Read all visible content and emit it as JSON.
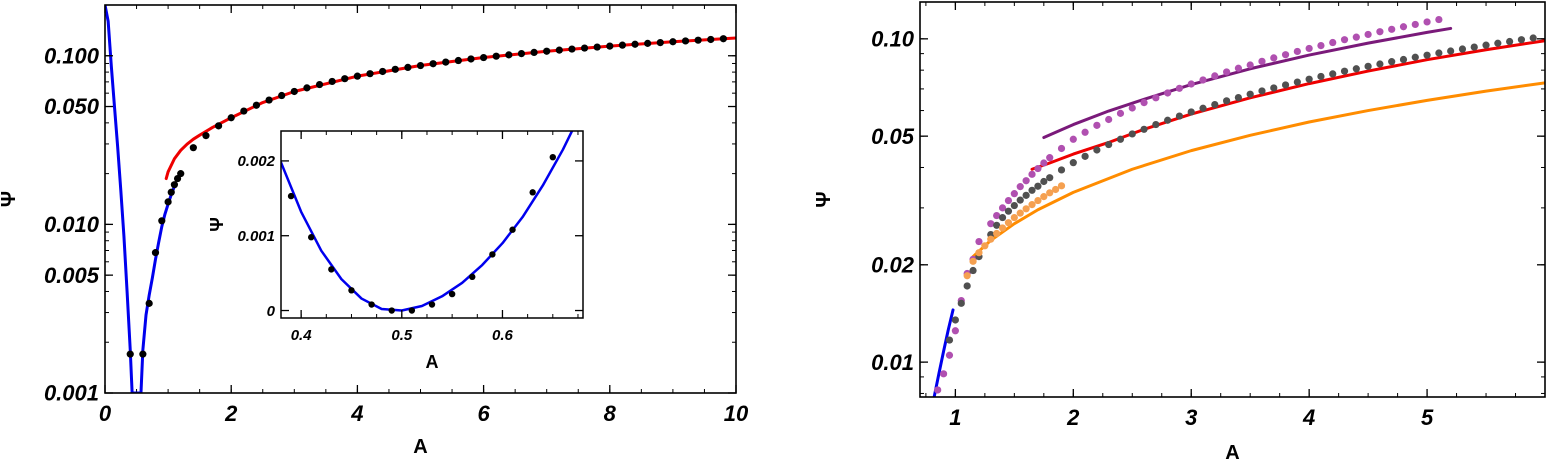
{
  "chart_data": [
    {
      "type": "scatter",
      "title": "",
      "xlabel": "A",
      "ylabel": "Ψ",
      "xlim": [
        0,
        10
      ],
      "ylim": [
        0.001,
        0.2
      ],
      "yscale": "log",
      "grid": false,
      "x_ticks": [
        0,
        2,
        4,
        6,
        8,
        10
      ],
      "x_tick_labels": [
        "0",
        "2",
        "4",
        "6",
        "8",
        "10"
      ],
      "y_ticks": [
        0.001,
        0.005,
        0.01,
        0.05,
        0.1
      ],
      "y_tick_labels": [
        "0.001",
        "0.005",
        "0.010",
        "0.050",
        "0.100"
      ],
      "series": [
        {
          "type": "scatter",
          "color": "#000000",
          "x": [
            0.4,
            0.6,
            0.7,
            0.8,
            0.9,
            1.0,
            1.05,
            1.1,
            1.15,
            1.2,
            1.4,
            1.6,
            1.8,
            2.0,
            2.2,
            2.4,
            2.6,
            2.8,
            3.0,
            3.2,
            3.4,
            3.6,
            3.8,
            4.0,
            4.2,
            4.4,
            4.6,
            4.8,
            5.0,
            5.2,
            5.4,
            5.6,
            5.8,
            6.0,
            6.2,
            6.4,
            6.6,
            6.8,
            7.0,
            7.2,
            7.4,
            7.6,
            7.8,
            8.0,
            8.2,
            8.4,
            8.6,
            8.8,
            9.0,
            9.2,
            9.4,
            9.6,
            9.8
          ],
          "y": [
            0.0017,
            0.0017,
            0.0034,
            0.0068,
            0.0105,
            0.0136,
            0.0155,
            0.0172,
            0.0187,
            0.02,
            0.0285,
            0.0336,
            0.0384,
            0.0429,
            0.047,
            0.0509,
            0.0546,
            0.0581,
            0.0614,
            0.0645,
            0.0675,
            0.0704,
            0.0731,
            0.0757,
            0.0783,
            0.0807,
            0.0831,
            0.0853,
            0.0875,
            0.0897,
            0.0917,
            0.0937,
            0.0957,
            0.0976,
            0.0994,
            0.1012,
            0.103,
            0.1047,
            0.1064,
            0.108,
            0.1096,
            0.1111,
            0.1126,
            0.1141,
            0.1156,
            0.117,
            0.1184,
            0.1197,
            0.1211,
            0.1224,
            0.1237,
            0.1249,
            0.1262
          ]
        },
        {
          "type": "line",
          "color": "#0000ee",
          "x": [
            0.0,
            0.05,
            0.1,
            0.15,
            0.2,
            0.25,
            0.3,
            0.35,
            0.4,
            0.43,
            0.57,
            0.6,
            0.65,
            0.7,
            0.75,
            0.8,
            0.85,
            0.9,
            0.95,
            1.0,
            1.05,
            1.1
          ],
          "y": [
            0.2,
            0.16,
            0.087,
            0.05,
            0.029,
            0.016,
            0.0085,
            0.004,
            0.0018,
            0.001,
            0.001,
            0.0018,
            0.0029,
            0.0038,
            0.0048,
            0.0062,
            0.0078,
            0.0097,
            0.0115,
            0.0132,
            0.015,
            0.0168
          ]
        },
        {
          "type": "line",
          "color": "#ee0000",
          "x": [
            0.97,
            1.0,
            1.1,
            1.2,
            1.3,
            1.4,
            1.5,
            1.7,
            2.0,
            2.5,
            3.0,
            4.0,
            5.0,
            6.0,
            7.0,
            8.0,
            9.0,
            10.0
          ],
          "y": [
            0.0187,
            0.0205,
            0.0245,
            0.0275,
            0.0299,
            0.032,
            0.0338,
            0.0375,
            0.0429,
            0.0528,
            0.0614,
            0.0757,
            0.0875,
            0.0976,
            0.1064,
            0.1141,
            0.1211,
            0.1274
          ]
        }
      ],
      "inset": {
        "type": "scatter",
        "xlabel": "A",
        "ylabel": "Ψ",
        "xlim": [
          0.38,
          0.68
        ],
        "ylim": [
          -0.0001,
          0.0024
        ],
        "x_ticks": [
          0.4,
          0.5,
          0.6
        ],
        "x_tick_labels": [
          "0.4",
          "0.5",
          "0.6"
        ],
        "y_ticks": [
          0,
          0.001,
          0.002
        ],
        "y_tick_labels": [
          "0",
          "0.001",
          "0.002"
        ],
        "series": [
          {
            "type": "scatter",
            "color": "#000000",
            "x": [
              0.39,
              0.41,
              0.43,
              0.45,
              0.47,
              0.49,
              0.51,
              0.53,
              0.55,
              0.57,
              0.59,
              0.61,
              0.63,
              0.65,
              0.67
            ],
            "y": [
              0.00153,
              0.00098,
              0.00055,
              0.00027,
              8e-05,
              0.0,
              0.0,
              8e-05,
              0.00022,
              0.00045,
              0.00075,
              0.00108,
              0.00158,
              0.00205,
              0.0025
            ]
          },
          {
            "type": "line",
            "color": "#0000ee",
            "x": [
              0.38,
              0.4,
              0.42,
              0.44,
              0.46,
              0.48,
              0.5,
              0.52,
              0.54,
              0.56,
              0.58,
              0.6,
              0.62,
              0.64,
              0.66,
              0.68
            ],
            "y": [
              0.00198,
              0.00132,
              0.0008,
              0.00042,
              0.00016,
              2e-05,
              0.0,
              6e-05,
              0.00019,
              0.00037,
              0.00061,
              0.0009,
              0.00125,
              0.00167,
              0.00215,
              0.0027
            ]
          }
        ]
      }
    },
    {
      "type": "scatter",
      "title": "",
      "xlabel": "A",
      "ylabel": "Ψ",
      "xlim": [
        0.7,
        6.0
      ],
      "ylim": [
        0.0078,
        0.13
      ],
      "yscale": "log",
      "grid": false,
      "x_ticks": [
        1,
        2,
        3,
        4,
        5
      ],
      "x_tick_labels": [
        "1",
        "2",
        "3",
        "4",
        "5"
      ],
      "y_ticks": [
        0.01,
        0.02,
        0.05,
        0.1
      ],
      "y_tick_labels": [
        "0.01",
        "0.02",
        "0.05",
        "0.10"
      ],
      "series": [
        {
          "type": "scatter",
          "color": "#b050b0",
          "x": [
            0.85,
            0.9,
            0.95,
            1.0,
            1.05,
            1.1,
            1.15,
            1.2,
            1.3,
            1.35,
            1.4,
            1.45,
            1.5,
            1.55,
            1.6,
            1.65,
            1.7,
            1.75,
            1.8,
            1.9,
            2.0,
            2.1,
            2.2,
            2.3,
            2.4,
            2.5,
            2.6,
            2.7,
            2.8,
            2.9,
            3.0,
            3.1,
            3.2,
            3.3,
            3.4,
            3.5,
            3.6,
            3.7,
            3.8,
            3.9,
            4.0,
            4.1,
            4.2,
            4.3,
            4.4,
            4.5,
            4.6,
            4.7,
            4.8,
            4.9,
            5.0,
            5.1
          ],
          "y": [
            0.0082,
            0.0092,
            0.0105,
            0.0125,
            0.0155,
            0.0188,
            0.0208,
            0.0236,
            0.0268,
            0.0284,
            0.03,
            0.0316,
            0.0332,
            0.0349,
            0.0364,
            0.0381,
            0.0397,
            0.0413,
            0.0429,
            0.0458,
            0.0489,
            0.0514,
            0.054,
            0.0563,
            0.0588,
            0.0611,
            0.0635,
            0.0657,
            0.068,
            0.0703,
            0.0725,
            0.0746,
            0.0768,
            0.079,
            0.0811,
            0.083,
            0.0852,
            0.0873,
            0.0893,
            0.0914,
            0.0934,
            0.0953,
            0.0974,
            0.0994,
            0.1012,
            0.1032,
            0.1052,
            0.107,
            0.109,
            0.1108,
            0.1128,
            0.1147
          ]
        },
        {
          "type": "scatter",
          "color": "#505050",
          "x": [
            0.95,
            1.0,
            1.05,
            1.1,
            1.15,
            1.2,
            1.3,
            1.35,
            1.4,
            1.45,
            1.5,
            1.55,
            1.6,
            1.65,
            1.7,
            1.75,
            1.8,
            1.9,
            2.0,
            2.1,
            2.2,
            2.3,
            2.4,
            2.5,
            2.6,
            2.7,
            2.8,
            2.9,
            3.0,
            3.1,
            3.2,
            3.3,
            3.4,
            3.5,
            3.6,
            3.7,
            3.8,
            3.9,
            4.0,
            4.1,
            4.2,
            4.3,
            4.4,
            4.5,
            4.6,
            4.7,
            4.8,
            4.9,
            5.0,
            5.1,
            5.2,
            5.3,
            5.4,
            5.5,
            5.6,
            5.7,
            5.8,
            5.9
          ],
          "y": [
            0.0117,
            0.0135,
            0.0152,
            0.0172,
            0.0192,
            0.0212,
            0.0248,
            0.0265,
            0.028,
            0.0293,
            0.0305,
            0.0317,
            0.0328,
            0.034,
            0.035,
            0.0362,
            0.0372,
            0.0393,
            0.0414,
            0.0433,
            0.0453,
            0.0471,
            0.0489,
            0.0508,
            0.0525,
            0.0543,
            0.056,
            0.0577,
            0.0594,
            0.061,
            0.0626,
            0.0643,
            0.0658,
            0.0674,
            0.069,
            0.0705,
            0.072,
            0.0735,
            0.075,
            0.0765,
            0.0779,
            0.0794,
            0.0808,
            0.0822,
            0.0836,
            0.085,
            0.0863,
            0.0877,
            0.089,
            0.0904,
            0.0917,
            0.093,
            0.0943,
            0.0956,
            0.0969,
            0.0981,
            0.0994,
            0.1006
          ]
        },
        {
          "type": "scatter",
          "color": "#f5a050",
          "x": [
            1.1,
            1.15,
            1.2,
            1.25,
            1.3,
            1.35,
            1.4,
            1.45,
            1.5,
            1.55,
            1.6,
            1.65,
            1.7,
            1.75,
            1.8,
            1.85,
            1.9
          ],
          "y": [
            0.0185,
            0.0205,
            0.0218,
            0.0229,
            0.024,
            0.025,
            0.026,
            0.027,
            0.028,
            0.0289,
            0.0298,
            0.0307,
            0.0316,
            0.0325,
            0.0334,
            0.0342,
            0.0351
          ]
        },
        {
          "type": "line",
          "color": "#0000ee",
          "x": [
            0.82,
            0.86,
            0.9,
            0.94,
            0.98
          ],
          "y": [
            0.0078,
            0.0092,
            0.0108,
            0.0126,
            0.0145
          ]
        },
        {
          "type": "line",
          "color": "#ee0000",
          "x": [
            1.65,
            1.8,
            2.0,
            2.3,
            2.6,
            3.0,
            3.5,
            4.0,
            4.5,
            5.0,
            5.5,
            6.0
          ],
          "y": [
            0.0395,
            0.0413,
            0.044,
            0.0478,
            0.0525,
            0.0585,
            0.0657,
            0.0727,
            0.0795,
            0.0862,
            0.0925,
            0.0987
          ]
        },
        {
          "type": "line",
          "color": "#7a1a7a",
          "x": [
            1.75,
            2.0,
            2.3,
            2.6,
            3.0,
            3.5,
            4.0,
            4.5,
            5.0,
            5.2
          ],
          "y": [
            0.0495,
            0.0543,
            0.0598,
            0.065,
            0.0722,
            0.0808,
            0.0891,
            0.097,
            0.1047,
            0.1077
          ]
        },
        {
          "type": "line",
          "color": "#ff8c00",
          "x": [
            1.15,
            1.3,
            1.5,
            1.7,
            2.0,
            2.5,
            3.0,
            3.5,
            4.0,
            4.5,
            5.0,
            5.5,
            6.0
          ],
          "y": [
            0.0212,
            0.0238,
            0.0268,
            0.0296,
            0.0335,
            0.0395,
            0.0451,
            0.0503,
            0.0553,
            0.06,
            0.0645,
            0.0689,
            0.0731
          ]
        }
      ]
    }
  ]
}
